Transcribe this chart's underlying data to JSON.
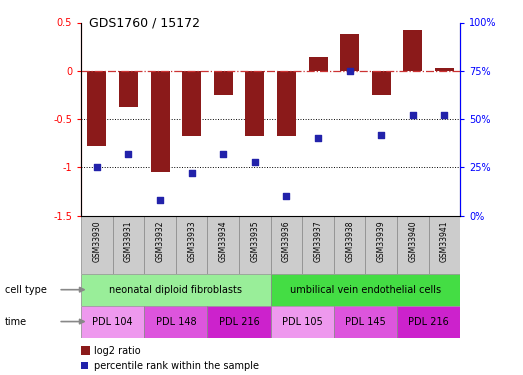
{
  "title": "GDS1760 / 15172",
  "samples": [
    "GSM33930",
    "GSM33931",
    "GSM33932",
    "GSM33933",
    "GSM33934",
    "GSM33935",
    "GSM33936",
    "GSM33937",
    "GSM33938",
    "GSM33939",
    "GSM33940",
    "GSM33941"
  ],
  "log2_ratio": [
    -0.78,
    -0.38,
    -1.05,
    -0.68,
    -0.25,
    -0.68,
    -0.68,
    0.14,
    0.38,
    -0.25,
    0.42,
    0.03
  ],
  "percentile_rank": [
    25,
    32,
    8,
    22,
    32,
    28,
    10,
    40,
    75,
    42,
    52,
    52
  ],
  "ylim_left": [
    -1.5,
    0.5
  ],
  "ylim_right": [
    0,
    100
  ],
  "bar_color": "#8B1A1A",
  "dot_color": "#2222AA",
  "hline_color": "#CC3333",
  "bg_color": "#FFFFFF",
  "cell_type_groups": [
    {
      "label": "neonatal diploid fibroblasts",
      "start": 0,
      "end": 6,
      "color": "#99EE99"
    },
    {
      "label": "umbilical vein endothelial cells",
      "start": 6,
      "end": 12,
      "color": "#44DD44"
    }
  ],
  "time_groups": [
    {
      "label": "PDL 104",
      "start": 0,
      "end": 2,
      "color": "#EE99EE"
    },
    {
      "label": "PDL 148",
      "start": 2,
      "end": 4,
      "color": "#DD55DD"
    },
    {
      "label": "PDL 216",
      "start": 4,
      "end": 6,
      "color": "#CC22CC"
    },
    {
      "label": "PDL 105",
      "start": 6,
      "end": 8,
      "color": "#EE99EE"
    },
    {
      "label": "PDL 145",
      "start": 8,
      "end": 10,
      "color": "#DD55DD"
    },
    {
      "label": "PDL 216",
      "start": 10,
      "end": 12,
      "color": "#CC22CC"
    }
  ],
  "legend_bar_color": "#8B1A1A",
  "legend_dot_color": "#2222AA",
  "legend_label1": "log2 ratio",
  "legend_label2": "percentile rank within the sample"
}
